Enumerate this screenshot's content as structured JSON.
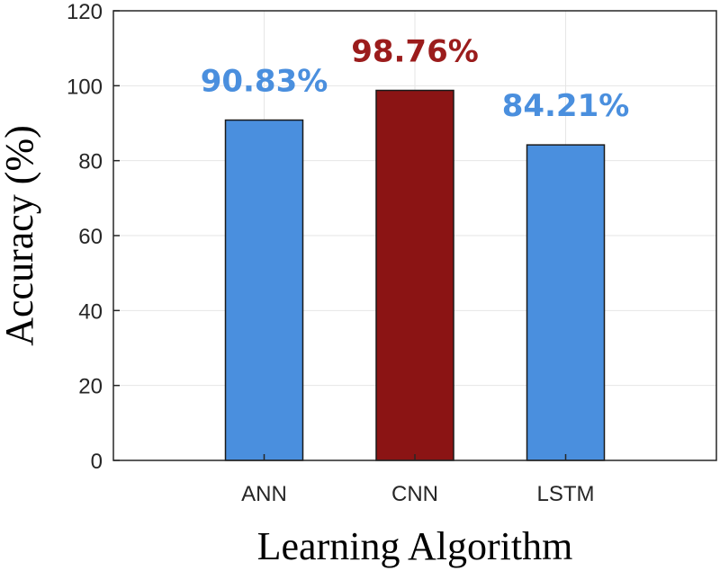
{
  "chart_data": {
    "type": "bar",
    "categories": [
      "ANN",
      "CNN",
      "LSTM"
    ],
    "values": [
      90.83,
      98.76,
      84.21
    ],
    "data_labels": [
      "90.83%",
      "98.76%",
      "84.21%"
    ],
    "bar_colors": [
      "#4a8fde",
      "#8b1414",
      "#4a8fde"
    ],
    "label_colors": [
      "#4a8fde",
      "#9b1c1c",
      "#4a8fde"
    ],
    "xlabel": "Learning Algorithm",
    "ylabel": "Accuracy (%)",
    "ylim": [
      0,
      120
    ],
    "yticks": [
      0,
      20,
      40,
      60,
      80,
      100,
      120
    ],
    "grid": true,
    "legend": "none"
  }
}
